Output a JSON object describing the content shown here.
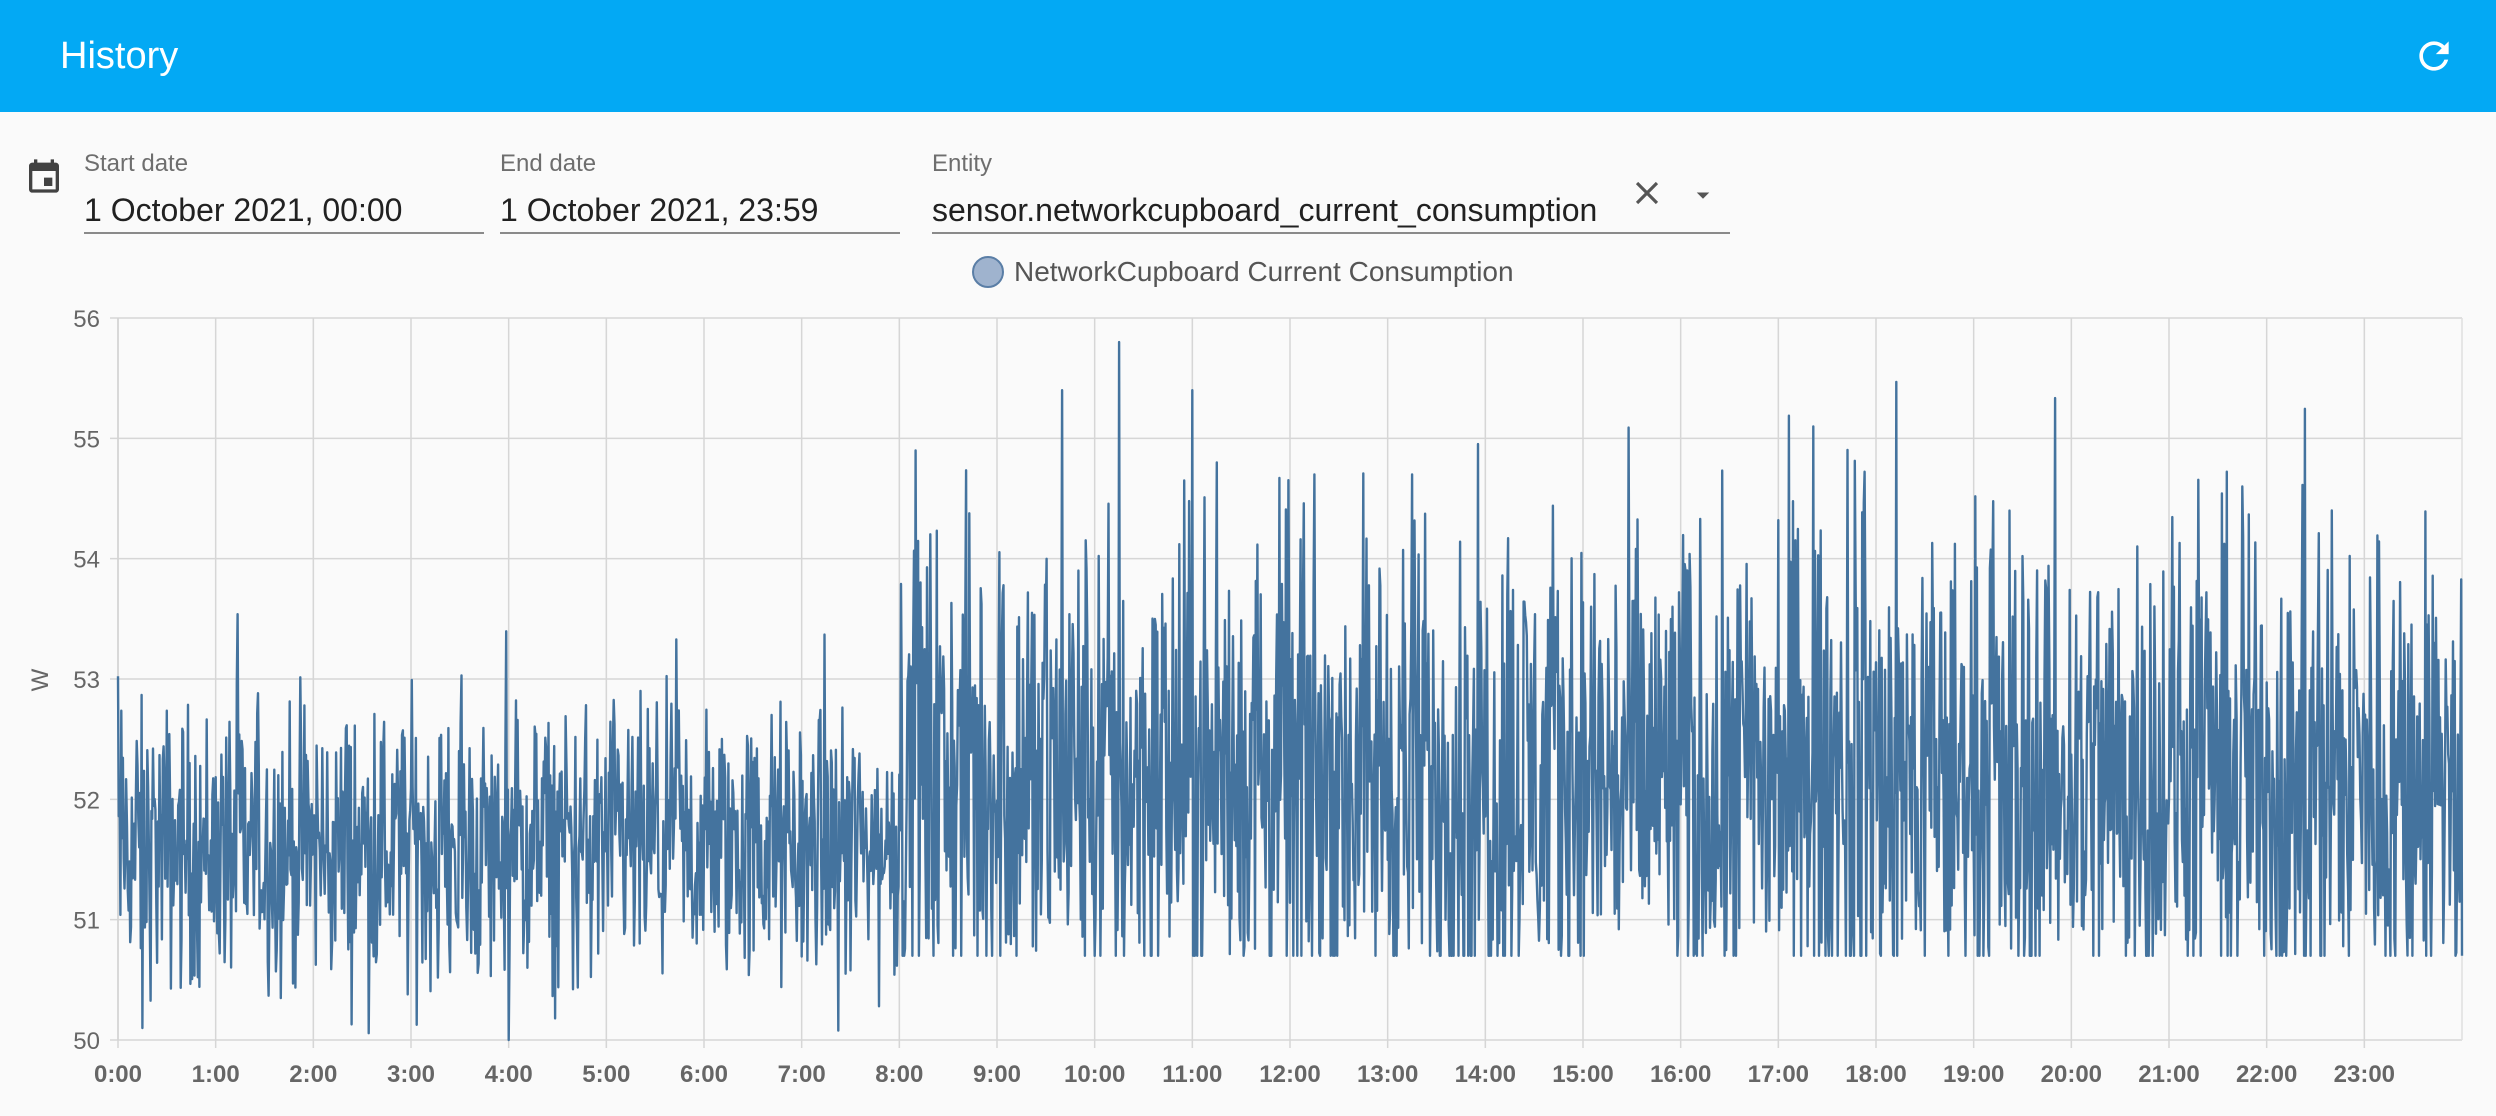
{
  "header": {
    "title": "History",
    "refresh_icon": "refresh-icon"
  },
  "filters": {
    "calendar_icon": "calendar-icon",
    "start_date": {
      "label": "Start date",
      "value": "1 October 2021, 00:00"
    },
    "end_date": {
      "label": "End date",
      "value": "1 October 2021, 23:59"
    },
    "entity": {
      "label": "Entity",
      "value": "sensor.networkcupboard_current_consumption",
      "clear_icon": "close-icon",
      "dropdown_icon": "arrow-drop-down-icon"
    }
  },
  "colors": {
    "toolbar": "#03a9f4",
    "series": "#44739e",
    "legend_fill": "#9fb3ce"
  },
  "chart_data": {
    "type": "line",
    "title": "",
    "ylabel": "W",
    "xlabel": "",
    "ylim": [
      50,
      56
    ],
    "xlim_hours": [
      0,
      24
    ],
    "yticks": [
      "50",
      "51",
      "52",
      "53",
      "54",
      "55",
      "56"
    ],
    "xticks": [
      "0:00",
      "1:00",
      "2:00",
      "3:00",
      "4:00",
      "5:00",
      "6:00",
      "7:00",
      "8:00",
      "9:00",
      "10:00",
      "11:00",
      "12:00",
      "13:00",
      "14:00",
      "15:00",
      "16:00",
      "17:00",
      "18:00",
      "19:00",
      "20:00",
      "21:00",
      "22:00",
      "23:00"
    ],
    "grid": true,
    "legend_position": "top-center",
    "series": [
      {
        "name": "NetworkCupboard Current Consumption",
        "color": "#44739e",
        "segments": [
          {
            "from": "0:00",
            "to": "8:00",
            "mean": 51.6,
            "min": 50.0,
            "max": 53.6
          },
          {
            "from": "8:00",
            "to": "24:00",
            "mean": 52.2,
            "min": 50.7,
            "max": 55.8
          }
        ],
        "peaks": [
          {
            "time": "8:10",
            "value": 54.9
          },
          {
            "time": "9:40",
            "value": 55.4
          },
          {
            "time": "10:15",
            "value": 55.8
          },
          {
            "time": "11:00",
            "value": 55.4
          },
          {
            "time": "11:15",
            "value": 54.8
          },
          {
            "time": "12:15",
            "value": 54.7
          },
          {
            "time": "13:15",
            "value": 54.7
          },
          {
            "time": "21:45",
            "value": 54.6
          },
          {
            "time": "22:40",
            "value": 54.4
          }
        ],
        "troughs": [
          {
            "time": "0:15",
            "value": 50.1
          },
          {
            "time": "4:00",
            "value": 50.0
          },
          {
            "time": "16:10",
            "value": 50.7
          }
        ]
      }
    ]
  }
}
